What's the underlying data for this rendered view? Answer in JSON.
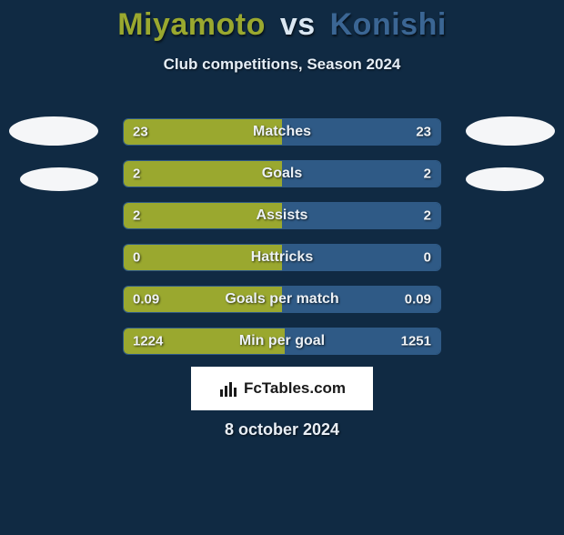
{
  "title": {
    "player1": "Miyamoto",
    "vs": "vs",
    "player2": "Konishi"
  },
  "subtitle": "Club competitions, Season 2024",
  "colors": {
    "player1": "#9aa82f",
    "player2": "#2f5a86",
    "bg": "#102a43",
    "text": "#e9eff6"
  },
  "stats": [
    {
      "label": "Matches",
      "left_val": "23",
      "right_val": "23",
      "left_pct": 50,
      "right_pct": 50
    },
    {
      "label": "Goals",
      "left_val": "2",
      "right_val": "2",
      "left_pct": 50,
      "right_pct": 50
    },
    {
      "label": "Assists",
      "left_val": "2",
      "right_val": "2",
      "left_pct": 50,
      "right_pct": 50
    },
    {
      "label": "Hattricks",
      "left_val": "0",
      "right_val": "0",
      "left_pct": 50,
      "right_pct": 50
    },
    {
      "label": "Goals per match",
      "left_val": "0.09",
      "right_val": "0.09",
      "left_pct": 50,
      "right_pct": 50
    },
    {
      "label": "Min per goal",
      "left_val": "1224",
      "right_val": "1251",
      "left_pct": 51,
      "right_pct": 49
    }
  ],
  "brand": "FcTables.com",
  "date": "8 october 2024"
}
